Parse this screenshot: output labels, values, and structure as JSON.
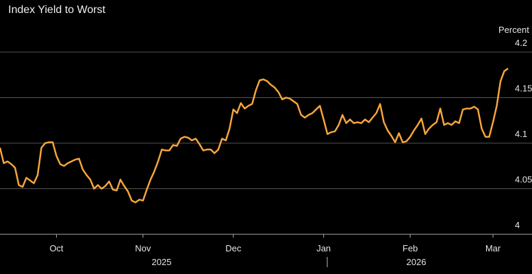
{
  "chart_data": {
    "type": "line",
    "title": "Index Yield to Worst",
    "y_axis_label": "Percent",
    "categories": [
      null,
      null,
      null,
      null,
      null,
      null,
      null,
      null,
      null,
      null,
      null,
      null,
      null,
      null,
      null,
      "Oct",
      null,
      null,
      null,
      null,
      null,
      null,
      null,
      null,
      null,
      null,
      null,
      null,
      null,
      null,
      null,
      null,
      null,
      null,
      null,
      null,
      null,
      null,
      "Nov",
      null,
      null,
      null,
      null,
      null,
      null,
      null,
      null,
      null,
      null,
      null,
      null,
      null,
      null,
      null,
      null,
      null,
      null,
      null,
      null,
      null,
      null,
      null,
      "Dec",
      null,
      null,
      null,
      null,
      null,
      null,
      null,
      null,
      null,
      null,
      null,
      null,
      null,
      null,
      null,
      null,
      null,
      null,
      null,
      null,
      null,
      null,
      null,
      "Jan",
      null,
      null,
      null,
      null,
      null,
      null,
      null,
      null,
      null,
      null,
      null,
      null,
      null,
      null,
      null,
      null,
      null,
      null,
      null,
      null,
      null,
      null,
      "Feb",
      null,
      null,
      null,
      null,
      null,
      null,
      null,
      null,
      null,
      null,
      null,
      null,
      null,
      null,
      null,
      null,
      null,
      null,
      null,
      null,
      null,
      "Mar",
      null,
      null,
      null,
      null
    ],
    "year_labels": [
      "2025",
      "2026"
    ],
    "series": [
      {
        "name": "Yield to Worst",
        "color": "#f7a53b",
        "values": [
          4.095,
          4.078,
          4.08,
          4.077,
          4.073,
          4.054,
          4.052,
          4.062,
          4.059,
          4.056,
          4.065,
          4.095,
          4.1,
          4.101,
          4.101,
          4.086,
          4.077,
          4.075,
          4.078,
          4.08,
          4.082,
          4.083,
          4.071,
          4.065,
          4.06,
          4.05,
          4.054,
          4.05,
          4.053,
          4.058,
          4.049,
          4.048,
          4.06,
          4.053,
          4.047,
          4.037,
          4.035,
          4.038,
          4.037,
          4.049,
          4.06,
          4.069,
          4.08,
          4.093,
          4.092,
          4.092,
          4.098,
          4.097,
          4.105,
          4.107,
          4.106,
          4.103,
          4.105,
          4.099,
          4.092,
          4.093,
          4.093,
          4.089,
          4.093,
          4.105,
          4.103,
          4.116,
          4.137,
          4.133,
          4.144,
          4.138,
          4.141,
          4.143,
          4.158,
          4.169,
          4.17,
          4.168,
          4.164,
          4.161,
          4.156,
          4.148,
          4.15,
          4.149,
          4.146,
          4.143,
          4.131,
          4.128,
          4.131,
          4.133,
          4.137,
          4.141,
          4.126,
          4.11,
          4.112,
          4.113,
          4.12,
          4.131,
          4.122,
          4.126,
          4.122,
          4.123,
          4.122,
          4.126,
          4.123,
          4.128,
          4.133,
          4.143,
          4.123,
          4.114,
          4.108,
          4.101,
          4.111,
          4.101,
          4.102,
          4.107,
          4.114,
          4.12,
          4.127,
          4.11,
          4.116,
          4.12,
          4.123,
          4.138,
          4.12,
          4.122,
          4.12,
          4.124,
          4.122,
          4.137,
          4.138,
          4.138,
          4.14,
          4.137,
          4.116,
          4.107,
          4.107,
          4.123,
          4.141,
          4.168,
          4.179,
          4.182
        ]
      }
    ],
    "ylim": [
      4.0,
      4.2
    ],
    "yticks": [
      4.0,
      4.05,
      4.1,
      4.15,
      4.2
    ],
    "grid": true
  }
}
